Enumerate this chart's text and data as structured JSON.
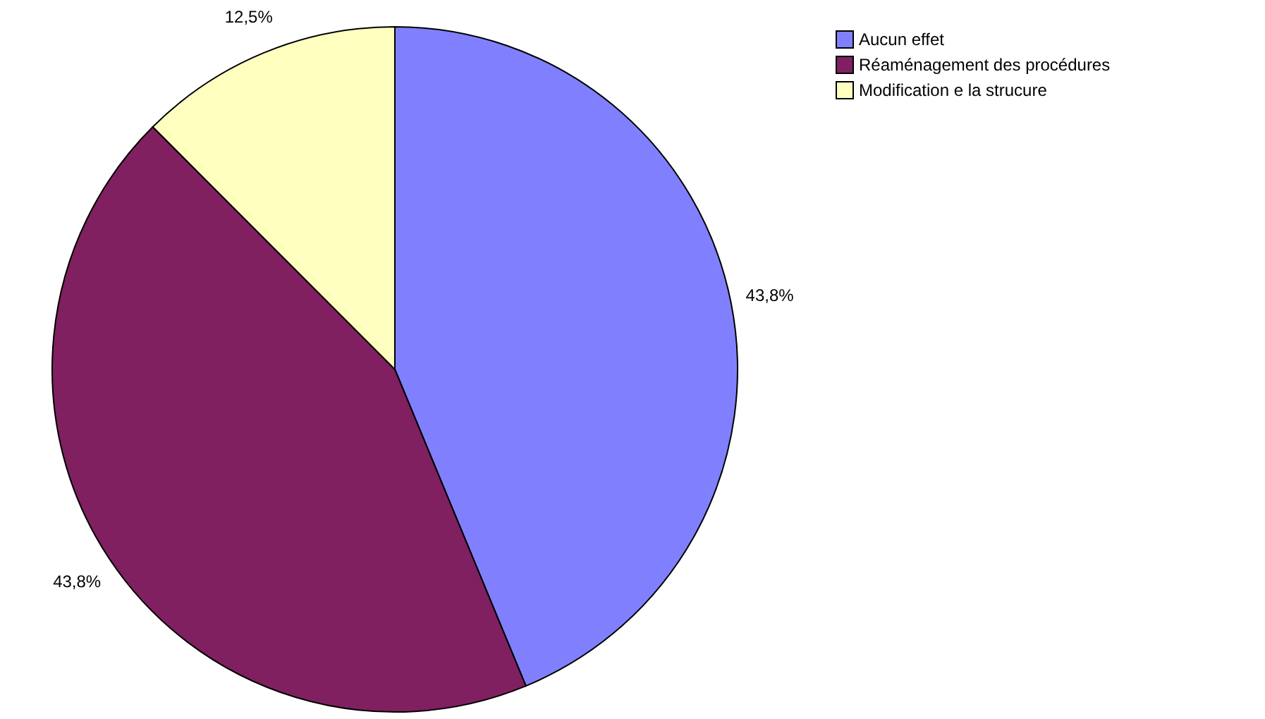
{
  "chart_data": {
    "type": "pie",
    "categories": [
      "Aucun effet",
      "Réaménagement des procédures",
      "Modification e la strucure"
    ],
    "values": [
      43.8,
      43.8,
      12.5
    ],
    "colors": [
      "#8080ff",
      "#802060",
      "#ffffc0"
    ],
    "value_labels": [
      "43,8%",
      "43,8%",
      "12,5%"
    ],
    "legend": "top right"
  }
}
